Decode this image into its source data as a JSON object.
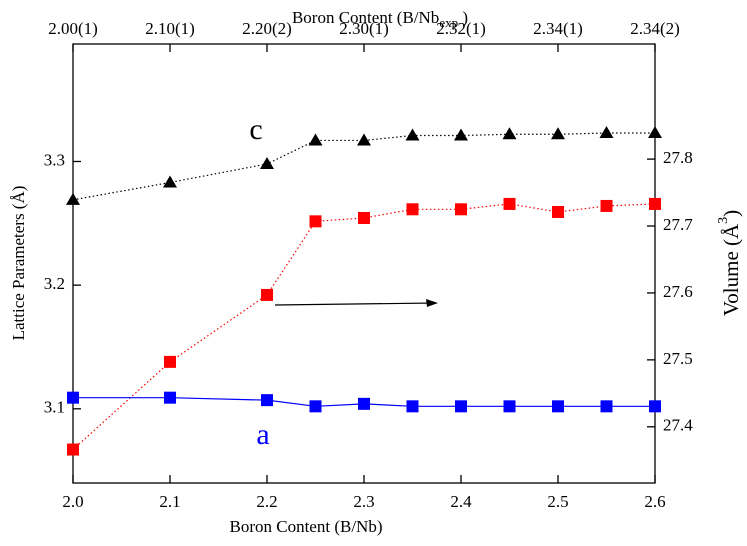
{
  "chart_data": {
    "type": "line",
    "x_label": "Boron Content (B/Nb)",
    "x2_label_parts": [
      "Boron Content (B/Nb",
      "exp",
      " )"
    ],
    "y_label": "Lattice Parameters (Å)",
    "y2_label_parts": [
      "Volume (Å",
      "3",
      ")"
    ],
    "xlim": [
      2.0,
      2.6
    ],
    "xticks": [
      {
        "value": 2.0,
        "label": "2.0"
      },
      2.1,
      2.2,
      2.3,
      2.4,
      2.5,
      2.6
    ],
    "x2ticks": [
      {
        "value": 2.0,
        "label": "2.00(1)"
      },
      {
        "value": 2.1,
        "label": "2.10(1)"
      },
      {
        "value": 2.2,
        "label": "2.20(2)"
      },
      {
        "value": 2.3,
        "label": "2.30(1)"
      },
      {
        "value": 2.4,
        "label": "2.32(1)"
      },
      {
        "value": 2.5,
        "label": "2.34(1)"
      },
      {
        "value": 2.6,
        "label": "2.34(2)"
      }
    ],
    "ylim": [
      3.04,
      3.395
    ],
    "yticks": [
      3.1,
      3.2,
      3.3
    ],
    "y2lim": [
      27.316,
      27.972
    ],
    "y2ticks": [
      27.4,
      27.5,
      27.6,
      27.7,
      27.8
    ],
    "x": [
      2.0,
      2.1,
      2.2,
      2.25,
      2.3,
      2.35,
      2.4,
      2.45,
      2.5,
      2.55,
      2.6
    ],
    "series": [
      {
        "color": "#000000",
        "marker": "triangle",
        "dash": true,
        "values": [
          3.269,
          3.283,
          3.298,
          3.317,
          3.317,
          3.321,
          3.321,
          3.322,
          3.322,
          3.323,
          3.323
        ]
      },
      {
        "color": "#ff0000",
        "marker": "square",
        "dash": true,
        "axis": "y2",
        "values": [
          27.366,
          27.497,
          27.597,
          27.707,
          27.712,
          27.725,
          27.725,
          27.733,
          27.721,
          27.73,
          27.733
        ]
      },
      {
        "color": "#0000ff",
        "marker": "square",
        "dash": false,
        "values": [
          3.109,
          3.109,
          3.107,
          3.102,
          3.104,
          3.102,
          3.102,
          3.102,
          3.102,
          3.102,
          3.102
        ]
      }
    ],
    "annotations": [
      {
        "text": "c",
        "color": "#000000"
      },
      {
        "text": "a",
        "color": "#0000ff"
      }
    ]
  }
}
